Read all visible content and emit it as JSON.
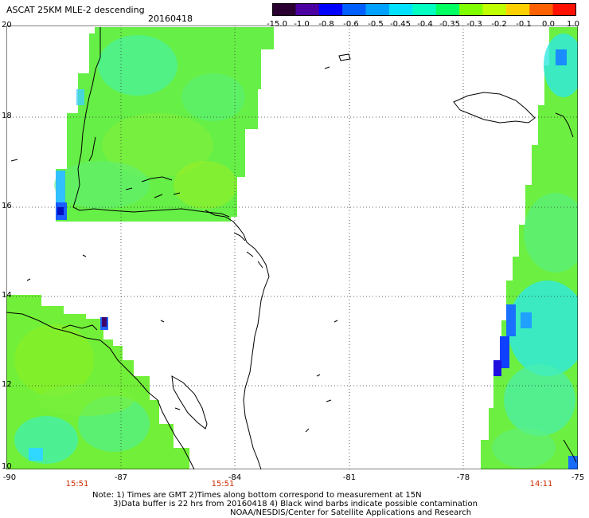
{
  "header": {
    "title": "ASCAT 25KM MLE-2 descending",
    "date": "20160418"
  },
  "colorbar": {
    "labels": [
      "-15.0",
      "-1.0",
      "-0.8",
      "-0.6",
      "-0.5",
      "-0.45",
      "-0.4",
      "-0.35",
      "-0.3",
      "-0.2",
      "-0.1",
      "0.0",
      "1.0"
    ],
    "colors": [
      "#2a0030",
      "#4b00a0",
      "#0000ff",
      "#0060ff",
      "#00a0ff",
      "#00e0ff",
      "#00ffc0",
      "#00ff60",
      "#80ff00",
      "#c0ff00",
      "#ffd000",
      "#ff6000",
      "#ff1000"
    ]
  },
  "map": {
    "latitudes": [
      "20",
      "18",
      "16",
      "14",
      "12",
      "10"
    ],
    "longitudes": [
      "-90",
      "-87",
      "-84",
      "-81",
      "-78",
      "-75"
    ],
    "pass_times": [
      "15:51",
      "15:51",
      "14:11"
    ]
  },
  "notes": {
    "line1": "Note: 1) Times are GMT 2)Times along bottom correspond to measurement at 15N",
    "line2": "3)Data buffer is 22 hrs from 20160418 4) Black wind barbs indicate possible contamination",
    "line3": "NOAA/NESDIS/Center for Satellite Applications and Research"
  }
}
